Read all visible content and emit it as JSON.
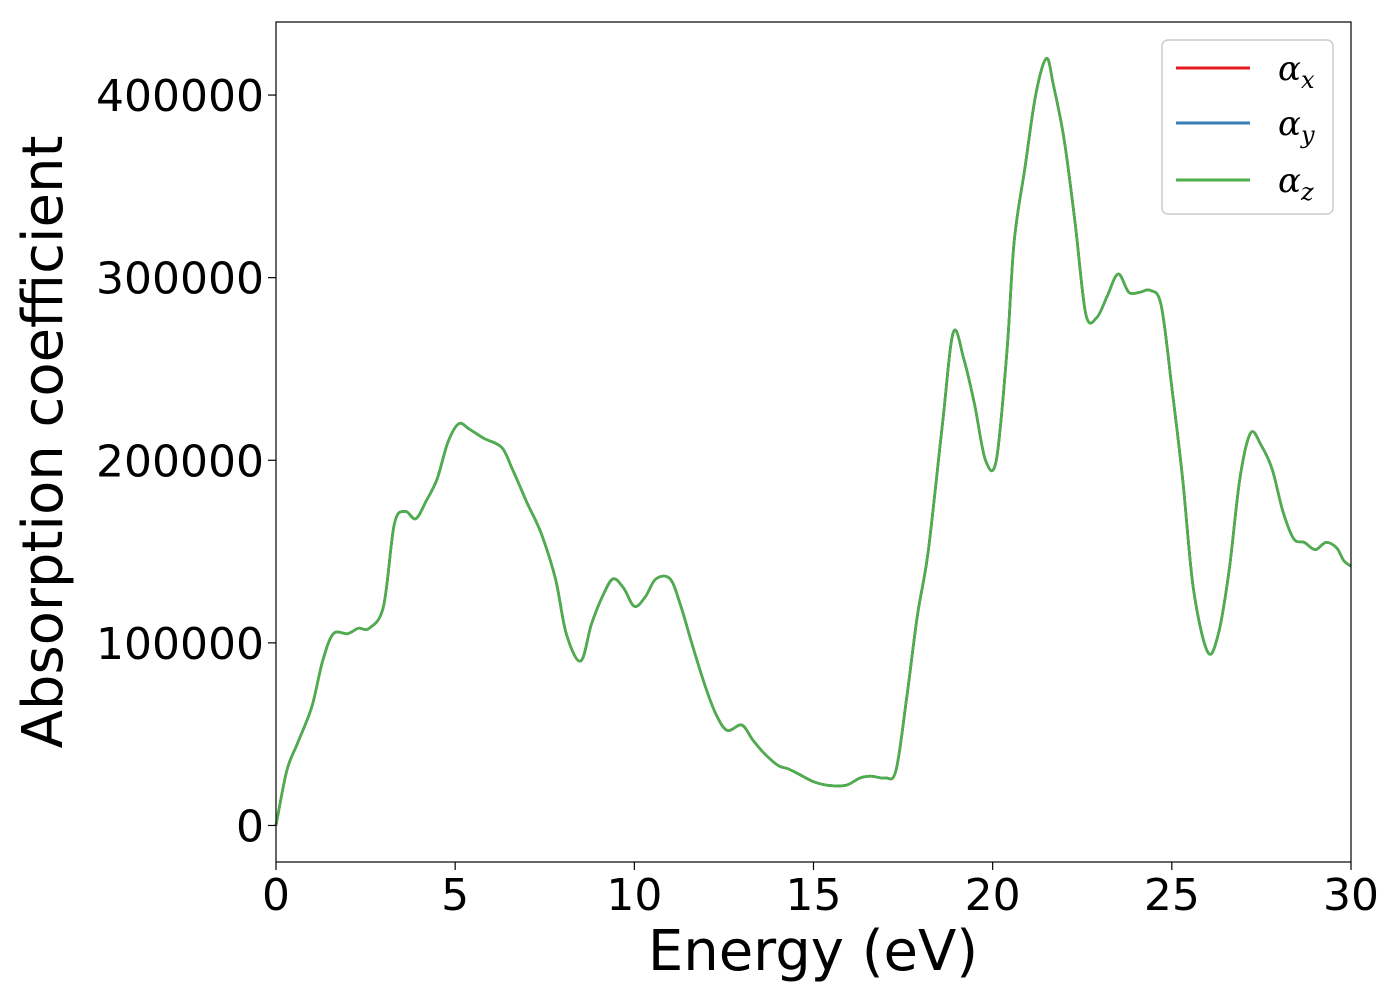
{
  "chart_data": {
    "type": "line",
    "xlabel": "Energy (eV)",
    "ylabel": "Absorption coefficient",
    "xlim": [
      0,
      30
    ],
    "ylim": [
      -20000,
      440000
    ],
    "xticks": [
      0,
      5,
      10,
      15,
      20,
      25,
      30
    ],
    "xtick_labels": [
      "0",
      "5",
      "10",
      "15",
      "20",
      "25",
      "30"
    ],
    "yticks": [
      0,
      100000,
      200000,
      300000,
      400000
    ],
    "ytick_labels": [
      "0",
      "100000",
      "200000",
      "300000",
      "400000"
    ],
    "grid": false,
    "legend_position": "top-right",
    "x": [
      0,
      0.3,
      0.6,
      1.0,
      1.3,
      1.6,
      2.0,
      2.3,
      2.6,
      3.0,
      3.3,
      3.6,
      3.9,
      4.2,
      4.5,
      4.8,
      5.1,
      5.4,
      5.8,
      6.3,
      6.6,
      7.0,
      7.4,
      7.8,
      8.1,
      8.5,
      8.8,
      9.1,
      9.4,
      9.7,
      10.0,
      10.3,
      10.6,
      11.0,
      11.3,
      11.6,
      12.0,
      12.3,
      12.6,
      13.0,
      13.3,
      13.6,
      14.0,
      14.3,
      14.6,
      15.0,
      15.4,
      15.9,
      16.3,
      16.6,
      17.0,
      17.3,
      17.6,
      17.9,
      18.2,
      18.6,
      18.9,
      19.2,
      19.5,
      19.8,
      20.1,
      20.4,
      20.6,
      20.9,
      21.2,
      21.5,
      21.7,
      22.0,
      22.3,
      22.6,
      22.9,
      23.2,
      23.5,
      23.8,
      24.1,
      24.4,
      24.7,
      25.0,
      25.3,
      25.6,
      26.0,
      26.3,
      26.6,
      26.9,
      27.2,
      27.5,
      27.8,
      28.1,
      28.4,
      28.7,
      29.0,
      29.3,
      29.6,
      29.8,
      30.0
    ],
    "series": [
      {
        "name": "α_x",
        "color": "#e41a1c",
        "values": [
          0,
          30000,
          45000,
          65000,
          90000,
          105000,
          105000,
          108000,
          108000,
          120000,
          165000,
          172000,
          168000,
          178000,
          190000,
          210000,
          220000,
          217000,
          212000,
          207000,
          195000,
          177000,
          160000,
          135000,
          105000,
          90000,
          110000,
          125000,
          135000,
          130000,
          120000,
          125000,
          135000,
          135000,
          120000,
          100000,
          75000,
          60000,
          52000,
          55000,
          47000,
          40000,
          33000,
          31000,
          28000,
          24000,
          22000,
          22000,
          26000,
          27000,
          26000,
          30000,
          70000,
          115000,
          150000,
          220000,
          270000,
          255000,
          230000,
          200000,
          200000,
          260000,
          320000,
          360000,
          400000,
          420000,
          405000,
          375000,
          330000,
          280000,
          278000,
          290000,
          302000,
          292000,
          292000,
          293000,
          285000,
          240000,
          190000,
          130000,
          95000,
          105000,
          140000,
          190000,
          215000,
          208000,
          195000,
          172000,
          157000,
          155000,
          151000,
          155000,
          152000,
          145000,
          142000
        ]
      },
      {
        "name": "α_y",
        "color": "#377eb8",
        "values": [
          0,
          30000,
          45000,
          65000,
          90000,
          105000,
          105000,
          108000,
          108000,
          120000,
          165000,
          172000,
          168000,
          178000,
          190000,
          210000,
          220000,
          217000,
          212000,
          207000,
          195000,
          177000,
          160000,
          135000,
          105000,
          90000,
          110000,
          125000,
          135000,
          130000,
          120000,
          125000,
          135000,
          135000,
          120000,
          100000,
          75000,
          60000,
          52000,
          55000,
          47000,
          40000,
          33000,
          31000,
          28000,
          24000,
          22000,
          22000,
          26000,
          27000,
          26000,
          30000,
          70000,
          115000,
          150000,
          220000,
          270000,
          255000,
          230000,
          200000,
          200000,
          260000,
          320000,
          360000,
          400000,
          420000,
          405000,
          375000,
          330000,
          280000,
          278000,
          290000,
          302000,
          292000,
          292000,
          293000,
          285000,
          240000,
          190000,
          130000,
          95000,
          105000,
          140000,
          190000,
          215000,
          208000,
          195000,
          172000,
          157000,
          155000,
          151000,
          155000,
          152000,
          145000,
          142000
        ]
      },
      {
        "name": "α_z",
        "color": "#4daf4a",
        "values": [
          0,
          30000,
          45000,
          65000,
          90000,
          105000,
          105000,
          108000,
          108000,
          120000,
          165000,
          172000,
          168000,
          178000,
          190000,
          210000,
          220000,
          217000,
          212000,
          207000,
          195000,
          177000,
          160000,
          135000,
          105000,
          90000,
          110000,
          125000,
          135000,
          130000,
          120000,
          125000,
          135000,
          135000,
          120000,
          100000,
          75000,
          60000,
          52000,
          55000,
          47000,
          40000,
          33000,
          31000,
          28000,
          24000,
          22000,
          22000,
          26000,
          27000,
          26000,
          30000,
          70000,
          115000,
          150000,
          220000,
          270000,
          255000,
          230000,
          200000,
          200000,
          260000,
          320000,
          360000,
          400000,
          420000,
          405000,
          375000,
          330000,
          280000,
          278000,
          290000,
          302000,
          292000,
          292000,
          293000,
          285000,
          240000,
          190000,
          130000,
          95000,
          105000,
          140000,
          190000,
          215000,
          208000,
          195000,
          172000,
          157000,
          155000,
          151000,
          155000,
          152000,
          145000,
          142000
        ]
      }
    ]
  },
  "legend": {
    "entries": [
      {
        "symbol": "α",
        "sub": "x"
      },
      {
        "symbol": "α",
        "sub": "y"
      },
      {
        "symbol": "α",
        "sub": "z"
      }
    ]
  }
}
